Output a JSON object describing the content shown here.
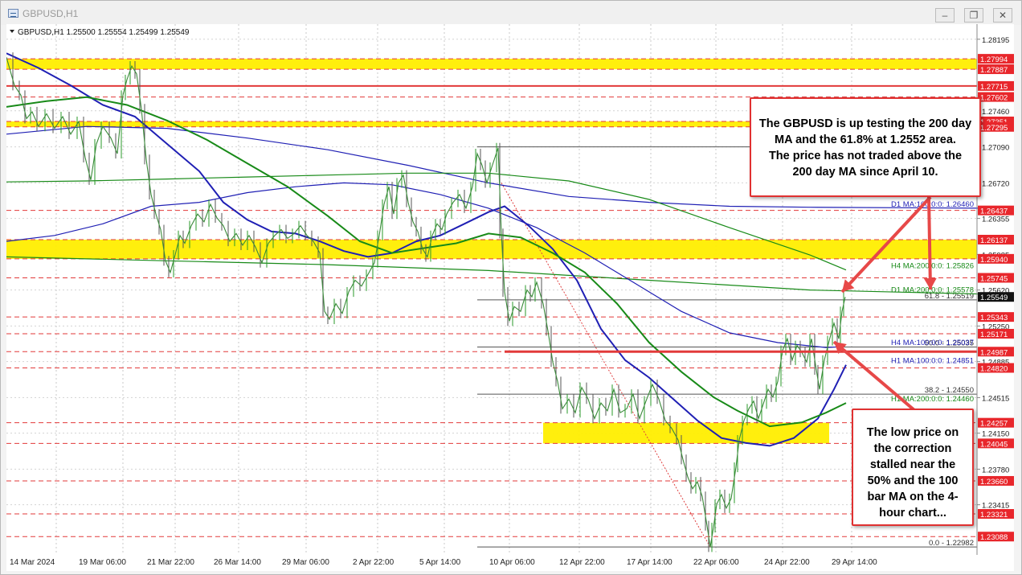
{
  "window": {
    "title": "GBPUSD,H1",
    "buttons": [
      "–",
      "❐",
      "✕"
    ]
  },
  "chart_data": {
    "type": "line",
    "symbol_header": "GBPUSD,H1  1.25500 1.25554 1.25499 1.25549",
    "ylim": [
      1.229,
      1.2835
    ],
    "price_ticks": [
      1.28195,
      1.2746,
      1.2709,
      1.2672,
      1.26355,
      1.25985,
      1.2562,
      1.2525,
      1.24885,
      1.24515,
      1.2415,
      1.2378,
      1.23415
    ],
    "x_labels": [
      "14 Mar 2024",
      "19 Mar 06:00",
      "21 Mar 22:00",
      "26 Mar 14:00",
      "29 Mar 06:00",
      "2 Apr 22:00",
      "5 Apr 14:00",
      "10 Apr 06:00",
      "12 Apr 22:00",
      "17 Apr 14:00",
      "22 Apr 06:00",
      "24 Apr 22:00",
      "29 Apr 14:00"
    ],
    "level_tags": [
      {
        "label": "1.27994",
        "value": 1.27994,
        "zone": true
      },
      {
        "label": "1.27887",
        "value": 1.27887,
        "zone": true
      },
      {
        "label": "1.27715",
        "value": 1.27715,
        "zone": false,
        "solid": true
      },
      {
        "label": "1.27602",
        "value": 1.27602,
        "zone": false
      },
      {
        "label": "1.27351",
        "value": 1.27351,
        "zone": true
      },
      {
        "label": "1.27295",
        "value": 1.27295,
        "zone": true
      },
      {
        "label": "1.26437",
        "value": 1.26437,
        "zone": false
      },
      {
        "label": "1.26137",
        "value": 1.26137,
        "zone": true
      },
      {
        "label": "1.25940",
        "value": 1.2594,
        "zone": true
      },
      {
        "label": "1.25745",
        "value": 1.25745,
        "zone": false
      },
      {
        "label": "1.25343",
        "value": 1.25343,
        "zone": false
      },
      {
        "label": "1.25171",
        "value": 1.25171,
        "zone": false
      },
      {
        "label": "1.24987",
        "value": 1.24987,
        "zone": false
      },
      {
        "label": "1.24820",
        "value": 1.2482,
        "zone": false
      },
      {
        "label": "1.24257",
        "value": 1.24257,
        "zone": true
      },
      {
        "label": "1.24045",
        "value": 1.24045,
        "zone": true
      },
      {
        "label": "1.23660",
        "value": 1.2366,
        "zone": false
      },
      {
        "label": "1.23321",
        "value": 1.23321,
        "zone": false
      },
      {
        "label": "1.23088",
        "value": 1.23088,
        "zone": false
      }
    ],
    "zones": [
      {
        "from": 1.27887,
        "to": 1.27994
      },
      {
        "from": 1.27295,
        "to": 1.27351
      },
      {
        "from": 1.2594,
        "to": 1.26137
      },
      {
        "from": 1.24045,
        "to": 1.24257
      }
    ],
    "current_price": {
      "label": "1.25549",
      "value": 1.25549
    },
    "fib_levels": [
      {
        "label": "61.8 - 1.25519",
        "value": 1.25519
      },
      {
        "label": "50.0 - 1.25035",
        "value": 1.25035
      },
      {
        "label": "38.2 - 1.24550",
        "value": 1.2455
      },
      {
        "label": "0.0 - 1.22982",
        "value": 1.22982
      }
    ],
    "fib_top": 1.2709,
    "ma_labels": [
      {
        "label": "D1 MA:100:0:0: 1.26460",
        "value": 1.2646,
        "color": "#1f1fb4"
      },
      {
        "label": "H4 MA:200:0:0: 1.25826",
        "value": 1.25826,
        "color": "#188a18"
      },
      {
        "label": "D1 MA:200:0:0: 1.25578",
        "value": 1.25578,
        "color": "#188a18"
      },
      {
        "label": "H4 MA:100:0:0: 1.25037",
        "value": 1.25037,
        "color": "#1f1fb4"
      },
      {
        "label": "H1 MA:100:0:0: 1.24851",
        "value": 1.24851,
        "color": "#1f1fb4"
      },
      {
        "label": "H1 MA:200:0:0: 1.24460",
        "value": 1.2446,
        "color": "#188a18"
      }
    ],
    "price_path": [
      [
        0,
        1.2801
      ],
      [
        10,
        1.2772
      ],
      [
        18,
        1.2762
      ],
      [
        25,
        1.2738
      ],
      [
        32,
        1.2745
      ],
      [
        40,
        1.273
      ],
      [
        50,
        1.2743
      ],
      [
        60,
        1.2728
      ],
      [
        70,
        1.274
      ],
      [
        80,
        1.2722
      ],
      [
        90,
        1.2735
      ],
      [
        98,
        1.2698
      ],
      [
        105,
        1.2675
      ],
      [
        112,
        1.2712
      ],
      [
        120,
        1.273
      ],
      [
        130,
        1.2718
      ],
      [
        138,
        1.2702
      ],
      [
        145,
        1.2762
      ],
      [
        150,
        1.2778
      ],
      [
        156,
        1.2792
      ],
      [
        162,
        1.2784
      ],
      [
        168,
        1.2748
      ],
      [
        174,
        1.2696
      ],
      [
        180,
        1.266
      ],
      [
        186,
        1.264
      ],
      [
        192,
        1.2624
      ],
      [
        198,
        1.2592
      ],
      [
        204,
        1.258
      ],
      [
        210,
        1.2598
      ],
      [
        216,
        1.2618
      ],
      [
        222,
        1.261
      ],
      [
        230,
        1.2628
      ],
      [
        238,
        1.264
      ],
      [
        246,
        1.2632
      ],
      [
        254,
        1.265
      ],
      [
        262,
        1.2636
      ],
      [
        270,
        1.2628
      ],
      [
        278,
        1.2612
      ],
      [
        286,
        1.262
      ],
      [
        294,
        1.2608
      ],
      [
        302,
        1.2618
      ],
      [
        310,
        1.2606
      ],
      [
        318,
        1.259
      ],
      [
        326,
        1.261
      ],
      [
        334,
        1.2618
      ],
      [
        342,
        1.2624
      ],
      [
        350,
        1.2615
      ],
      [
        358,
        1.262
      ],
      [
        366,
        1.2628
      ],
      [
        374,
        1.2618
      ],
      [
        382,
        1.2612
      ],
      [
        390,
        1.26
      ],
      [
        396,
        1.254
      ],
      [
        402,
        1.2532
      ],
      [
        410,
        1.2548
      ],
      [
        418,
        1.2538
      ],
      [
        426,
        1.256
      ],
      [
        434,
        1.2572
      ],
      [
        442,
        1.2566
      ],
      [
        450,
        1.2578
      ],
      [
        458,
        1.259
      ],
      [
        464,
        1.2618
      ],
      [
        470,
        1.265
      ],
      [
        476,
        1.2668
      ],
      [
        482,
        1.264
      ],
      [
        488,
        1.2672
      ],
      [
        494,
        1.268
      ],
      [
        500,
        1.2652
      ],
      [
        506,
        1.2632
      ],
      [
        512,
        1.2622
      ],
      [
        518,
        1.2604
      ],
      [
        524,
        1.2596
      ],
      [
        530,
        1.2618
      ],
      [
        536,
        1.263
      ],
      [
        542,
        1.2624
      ],
      [
        548,
        1.264
      ],
      [
        556,
        1.2652
      ],
      [
        564,
        1.266
      ],
      [
        572,
        1.2646
      ],
      [
        580,
        1.2668
      ],
      [
        586,
        1.2702
      ],
      [
        592,
        1.269
      ],
      [
        598,
        1.2672
      ],
      [
        604,
        1.2688
      ],
      [
        612,
        1.2708
      ],
      [
        616,
        1.262
      ],
      [
        620,
        1.256
      ],
      [
        626,
        1.253
      ],
      [
        632,
        1.2545
      ],
      [
        640,
        1.254
      ],
      [
        648,
        1.2562
      ],
      [
        654,
        1.2555
      ],
      [
        660,
        1.257
      ],
      [
        668,
        1.2548
      ],
      [
        674,
        1.252
      ],
      [
        680,
        1.2488
      ],
      [
        686,
        1.2468
      ],
      [
        692,
        1.244
      ],
      [
        700,
        1.245
      ],
      [
        708,
        1.2436
      ],
      [
        716,
        1.2462
      ],
      [
        724,
        1.245
      ],
      [
        732,
        1.243
      ],
      [
        740,
        1.2446
      ],
      [
        748,
        1.2438
      ],
      [
        756,
        1.246
      ],
      [
        764,
        1.2436
      ],
      [
        772,
        1.244
      ],
      [
        780,
        1.2455
      ],
      [
        788,
        1.243
      ],
      [
        796,
        1.2448
      ],
      [
        804,
        1.2465
      ],
      [
        812,
        1.245
      ],
      [
        820,
        1.2428
      ],
      [
        828,
        1.242
      ],
      [
        836,
        1.2408
      ],
      [
        842,
        1.2388
      ],
      [
        848,
        1.237
      ],
      [
        854,
        1.2358
      ],
      [
        860,
        1.2365
      ],
      [
        866,
        1.235
      ],
      [
        872,
        1.232
      ],
      [
        876,
        1.2298
      ],
      [
        880,
        1.2318
      ],
      [
        884,
        1.2342
      ],
      [
        890,
        1.2352
      ],
      [
        896,
        1.2338
      ],
      [
        902,
        1.2348
      ],
      [
        908,
        1.238
      ],
      [
        912,
        1.2408
      ],
      [
        918,
        1.2428
      ],
      [
        924,
        1.244
      ],
      [
        930,
        1.2448
      ],
      [
        936,
        1.243
      ],
      [
        942,
        1.2445
      ],
      [
        948,
        1.246
      ],
      [
        954,
        1.2452
      ],
      [
        960,
        1.2468
      ],
      [
        966,
        1.25
      ],
      [
        972,
        1.2512
      ],
      [
        978,
        1.249
      ],
      [
        984,
        1.2505
      ],
      [
        990,
        1.2498
      ],
      [
        996,
        1.2488
      ],
      [
        1002,
        1.2512
      ],
      [
        1008,
        1.248
      ],
      [
        1012,
        1.246
      ],
      [
        1018,
        1.249
      ],
      [
        1024,
        1.251
      ],
      [
        1030,
        1.2528
      ],
      [
        1036,
        1.2512
      ],
      [
        1040,
        1.254
      ],
      [
        1044,
        1.25549
      ]
    ],
    "ma_lines": [
      {
        "name": "D1 MA:100",
        "color": "#1f1fb4",
        "width": 1.2,
        "points": [
          [
            0,
            1.2722
          ],
          [
            100,
            1.273
          ],
          [
            200,
            1.2728
          ],
          [
            300,
            1.2718
          ],
          [
            400,
            1.2706
          ],
          [
            500,
            1.269
          ],
          [
            600,
            1.2672
          ],
          [
            700,
            1.2658
          ],
          [
            800,
            1.2652
          ],
          [
            900,
            1.2648
          ],
          [
            1000,
            1.2647
          ],
          [
            1216,
            1.2646
          ]
        ]
      },
      {
        "name": "D1 MA:200",
        "color": "#188a18",
        "width": 1.2,
        "points": [
          [
            0,
            1.2596
          ],
          [
            200,
            1.2592
          ],
          [
            400,
            1.2588
          ],
          [
            600,
            1.2582
          ],
          [
            800,
            1.2572
          ],
          [
            1000,
            1.2562
          ],
          [
            1216,
            1.25578
          ]
        ]
      },
      {
        "name": "H4 MA:200",
        "color": "#188a18",
        "width": 1.2,
        "points": [
          [
            0,
            1.2673
          ],
          [
            100,
            1.2674
          ],
          [
            200,
            1.2676
          ],
          [
            300,
            1.2678
          ],
          [
            400,
            1.268
          ],
          [
            500,
            1.2682
          ],
          [
            600,
            1.2682
          ],
          [
            700,
            1.2674
          ],
          [
            800,
            1.2655
          ],
          [
            900,
            1.2626
          ],
          [
            1000,
            1.2598
          ],
          [
            1045,
            1.25826
          ]
        ]
      },
      {
        "name": "H4 MA:100",
        "color": "#1f1fb4",
        "width": 1.2,
        "points": [
          [
            0,
            1.2612
          ],
          [
            60,
            1.2618
          ],
          [
            120,
            1.263
          ],
          [
            180,
            1.2648
          ],
          [
            240,
            1.2652
          ],
          [
            300,
            1.2662
          ],
          [
            360,
            1.2668
          ],
          [
            420,
            1.2672
          ],
          [
            480,
            1.267
          ],
          [
            540,
            1.266
          ],
          [
            600,
            1.2646
          ],
          [
            660,
            1.2626
          ],
          [
            720,
            1.26
          ],
          [
            780,
            1.257
          ],
          [
            840,
            1.254
          ],
          [
            900,
            1.2518
          ],
          [
            960,
            1.2508
          ],
          [
            1020,
            1.2503
          ],
          [
            1040,
            1.25037
          ]
        ]
      },
      {
        "name": "H1 MA:100",
        "color": "#1f1fb4",
        "width": 2,
        "points": [
          [
            0,
            1.2805
          ],
          [
            40,
            1.279
          ],
          [
            80,
            1.2772
          ],
          [
            120,
            1.2752
          ],
          [
            160,
            1.274
          ],
          [
            200,
            1.2712
          ],
          [
            240,
            1.2684
          ],
          [
            270,
            1.2652
          ],
          [
            300,
            1.2634
          ],
          [
            330,
            1.2622
          ],
          [
            360,
            1.262
          ],
          [
            390,
            1.2612
          ],
          [
            420,
            1.2602
          ],
          [
            450,
            1.2596
          ],
          [
            480,
            1.26
          ],
          [
            510,
            1.2612
          ],
          [
            540,
            1.2618
          ],
          [
            570,
            1.263
          ],
          [
            600,
            1.2642
          ],
          [
            620,
            1.2648
          ],
          [
            650,
            1.2628
          ],
          [
            680,
            1.2604
          ],
          [
            710,
            1.2572
          ],
          [
            740,
            1.2522
          ],
          [
            770,
            1.249
          ],
          [
            800,
            1.2472
          ],
          [
            830,
            1.245
          ],
          [
            860,
            1.2428
          ],
          [
            890,
            1.241
          ],
          [
            920,
            1.2405
          ],
          [
            950,
            1.2402
          ],
          [
            980,
            1.241
          ],
          [
            1010,
            1.243
          ],
          [
            1030,
            1.246
          ],
          [
            1045,
            1.24851
          ]
        ]
      },
      {
        "name": "H1 MA:200",
        "color": "#188a18",
        "width": 2,
        "points": [
          [
            0,
            1.275
          ],
          [
            50,
            1.2756
          ],
          [
            100,
            1.276
          ],
          [
            150,
            1.2752
          ],
          [
            200,
            1.2736
          ],
          [
            250,
            1.2716
          ],
          [
            300,
            1.2692
          ],
          [
            350,
            1.2668
          ],
          [
            400,
            1.2638
          ],
          [
            440,
            1.2612
          ],
          [
            480,
            1.26
          ],
          [
            520,
            1.2605
          ],
          [
            560,
            1.261
          ],
          [
            600,
            1.262
          ],
          [
            640,
            1.2616
          ],
          [
            680,
            1.26
          ],
          [
            720,
            1.258
          ],
          [
            760,
            1.2548
          ],
          [
            800,
            1.2508
          ],
          [
            840,
            1.2478
          ],
          [
            880,
            1.2452
          ],
          [
            910,
            1.2438
          ],
          [
            950,
            1.2422
          ],
          [
            990,
            1.2426
          ],
          [
            1020,
            1.2436
          ],
          [
            1045,
            1.2446
          ]
        ]
      }
    ],
    "red_line_value": 1.24987,
    "dotted_trend": {
      "from": [
        616,
        1.2672
      ],
      "to": [
        876,
        1.2298
      ]
    }
  },
  "annotations": {
    "top": [
      "The GBPUSD is up testing the 200 day",
      "MA and the 61.8% at 1.2552 area.",
      "The price has not traded above the",
      "200 day MA since April 10."
    ],
    "bottom": [
      "The low price on",
      "the correction",
      "stalled near the",
      "50% and the 100",
      "bar MA on the 4-",
      "hour chart..."
    ]
  }
}
